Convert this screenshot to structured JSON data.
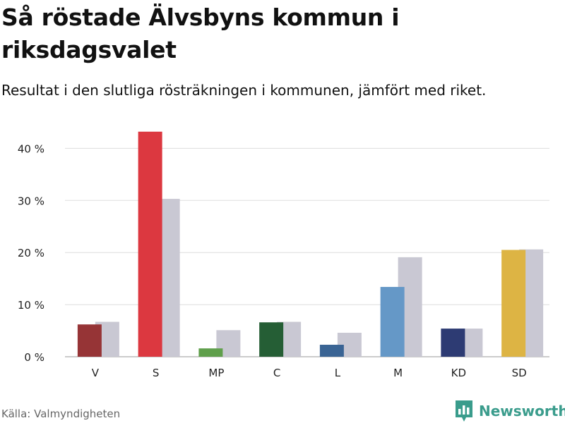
{
  "header": {
    "title": "Så röstade Älvsbyns kommun i riksdagsvalet",
    "subtitle": "Resultat i den slutliga rösträkningen i kommunen, jämfört med riket."
  },
  "footer": {
    "source": "Källa: Valmyndigheten",
    "brand": "Newsworthy"
  },
  "colors": {
    "national": "#c9c8d3",
    "grid": "#dddddd",
    "brand": "#3a9c8c"
  },
  "chart_data": {
    "type": "bar",
    "categories": [
      "V",
      "S",
      "MP",
      "C",
      "L",
      "M",
      "KD",
      "SD"
    ],
    "series": [
      {
        "values": [
          6.2,
          43.2,
          1.6,
          6.6,
          2.3,
          13.4,
          5.4,
          20.5
        ],
        "colors": [
          "#963436",
          "#dc3840",
          "#5f9f4b",
          "#255e35",
          "#3a6494",
          "#6598c7",
          "#2d3b73",
          "#ddb444"
        ]
      },
      {
        "values": [
          6.7,
          30.3,
          5.1,
          6.7,
          4.6,
          19.1,
          5.4,
          20.6
        ],
        "color": "#c9c8d3"
      }
    ],
    "yticks": [
      0,
      10,
      20,
      30,
      40
    ],
    "ytick_labels": [
      "0 %",
      "10 %",
      "20 %",
      "30 %",
      "40 %"
    ],
    "ylim": [
      0,
      45
    ],
    "grid": true,
    "legend": false
  }
}
